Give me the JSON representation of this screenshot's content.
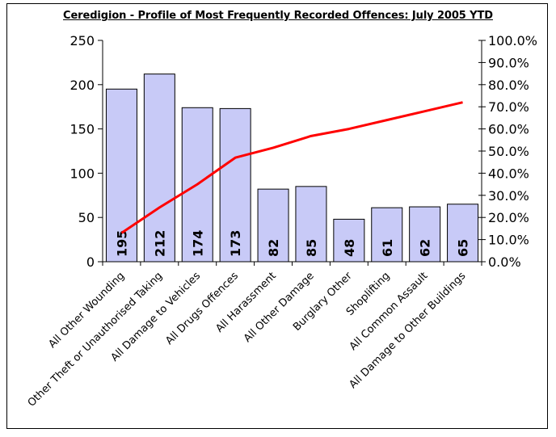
{
  "chart_data": {
    "type": "bar",
    "title": "Ceredigion - Profile of Most Frequently Recorded Offences: July 2005 YTD",
    "categories": [
      "All Other Wounding",
      "Other Theft or Unauthorised Taking",
      "All Damage to Vehicles",
      "All Drugs Offences",
      "All Harassment",
      "All Other Damage",
      "Burglary Other",
      "Shoplifting",
      "All Common Assault",
      "All Damage to Other Buildings"
    ],
    "series": [
      {
        "values": [
          195,
          212,
          174,
          173,
          82,
          85,
          48,
          61,
          62,
          65
        ]
      },
      {
        "values": [
          0.13,
          0.245,
          0.35,
          0.47,
          0.515,
          0.568,
          0.6,
          0.64,
          0.68,
          0.72
        ]
      }
    ],
    "y_left": {
      "min": 0,
      "max": 250,
      "ticks": [
        "0",
        "50",
        "100",
        "150",
        "200",
        "250"
      ]
    },
    "y_right": {
      "min": 0,
      "max": 1,
      "ticks": [
        "0.0%",
        "10.0%",
        "20.0%",
        "30.0%",
        "40.0%",
        "50.0%",
        "60.0%",
        "70.0%",
        "80.0%",
        "90.0%",
        "100.0%"
      ]
    },
    "grid": false,
    "legend": "none",
    "colors": {
      "bar_fill": "#c8caf7",
      "bar_stroke": "#000000",
      "line": "#ff0000"
    }
  }
}
